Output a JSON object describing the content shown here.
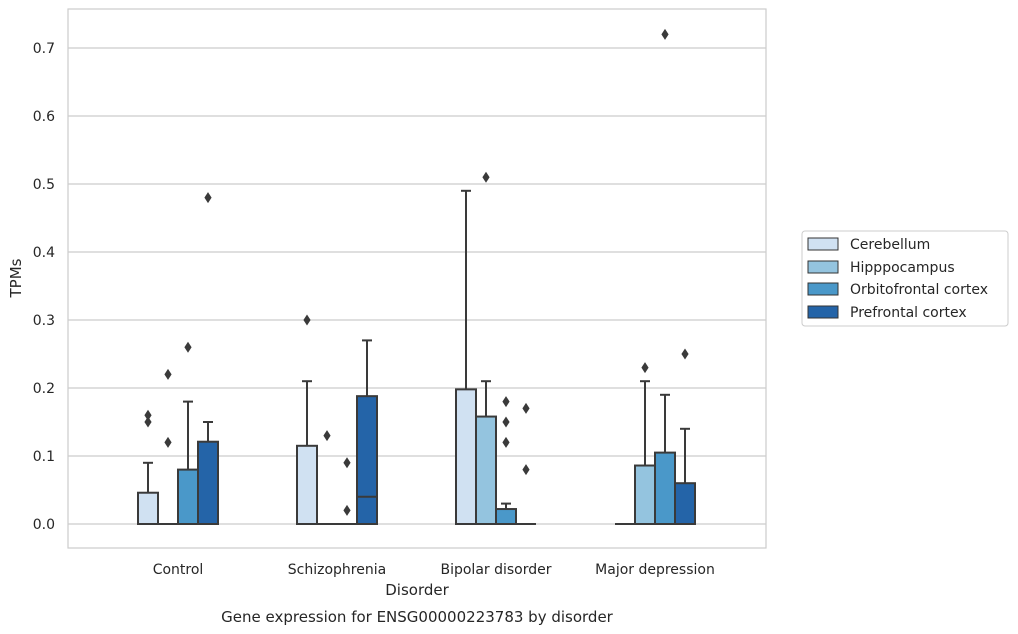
{
  "chart_data": {
    "type": "bar",
    "caption": "Gene expression for ENSG00000223783 by disorder",
    "xlabel": "Disorder",
    "ylabel": "TPMs",
    "ylim": [
      -0.035,
      0.757
    ],
    "yticks": [
      0.0,
      0.1,
      0.2,
      0.3,
      0.4,
      0.5,
      0.6,
      0.7
    ],
    "ytick_labels": [
      "0.0",
      "0.1",
      "0.2",
      "0.3",
      "0.4",
      "0.5",
      "0.6",
      "0.7"
    ],
    "grid": true,
    "legend_position": "right",
    "categories": [
      "Control",
      "Schizophrenia",
      "Bipolar disorder",
      "Major depression"
    ],
    "series": [
      {
        "name": "Cerebellum",
        "color": "#d0e1f2",
        "boxes": [
          {
            "q1": 0.0,
            "median": 0.0,
            "q3": 0.046,
            "whisker_low": 0.0,
            "whisker_high": 0.09,
            "outliers": [
              0.15,
              0.16
            ]
          },
          {
            "q1": 0.0,
            "median": 0.0,
            "q3": 0.115,
            "whisker_low": 0.0,
            "whisker_high": 0.21,
            "outliers": [
              0.3
            ]
          },
          {
            "q1": 0.0,
            "median": 0.0,
            "q3": 0.198,
            "whisker_low": 0.0,
            "whisker_high": 0.49,
            "outliers": []
          },
          {
            "q1": 0.0,
            "median": 0.0,
            "q3": 0.0,
            "whisker_low": 0.0,
            "whisker_high": 0.0,
            "outliers": []
          }
        ]
      },
      {
        "name": "Hipppocampus",
        "color": "#94c4df",
        "boxes": [
          {
            "q1": 0.0,
            "median": 0.0,
            "q3": 0.0,
            "whisker_low": 0.0,
            "whisker_high": 0.0,
            "outliers": [
              0.12,
              0.22
            ]
          },
          {
            "q1": 0.0,
            "median": 0.0,
            "q3": 0.0,
            "whisker_low": 0.0,
            "whisker_high": 0.0,
            "outliers": [
              0.13
            ]
          },
          {
            "q1": 0.0,
            "median": 0.0,
            "q3": 0.158,
            "whisker_low": 0.0,
            "whisker_high": 0.21,
            "outliers": [
              0.51
            ]
          },
          {
            "q1": 0.0,
            "median": 0.0,
            "q3": 0.086,
            "whisker_low": 0.0,
            "whisker_high": 0.21,
            "outliers": [
              0.23
            ]
          }
        ]
      },
      {
        "name": "Orbitofrontal cortex",
        "color": "#4a98c9",
        "boxes": [
          {
            "q1": 0.0,
            "median": 0.0,
            "q3": 0.08,
            "whisker_low": 0.0,
            "whisker_high": 0.18,
            "outliers": [
              0.26
            ]
          },
          {
            "q1": 0.0,
            "median": 0.0,
            "q3": 0.0,
            "whisker_low": 0.0,
            "whisker_high": 0.0,
            "outliers": [
              0.02,
              0.09
            ]
          },
          {
            "q1": 0.0,
            "median": 0.0,
            "q3": 0.022,
            "whisker_low": 0.0,
            "whisker_high": 0.03,
            "outliers": [
              0.12,
              0.15,
              0.18
            ]
          },
          {
            "q1": 0.0,
            "median": 0.0,
            "q3": 0.105,
            "whisker_low": 0.0,
            "whisker_high": 0.19,
            "outliers": [
              0.72
            ]
          }
        ]
      },
      {
        "name": "Prefrontal cortex",
        "color": "#2464a8",
        "boxes": [
          {
            "q1": 0.0,
            "median": 0.0,
            "q3": 0.121,
            "whisker_low": 0.0,
            "whisker_high": 0.15,
            "outliers": [
              0.48
            ]
          },
          {
            "q1": 0.0,
            "median": 0.04,
            "q3": 0.188,
            "whisker_low": 0.0,
            "whisker_high": 0.27,
            "outliers": []
          },
          {
            "q1": 0.0,
            "median": 0.0,
            "q3": 0.0,
            "whisker_low": 0.0,
            "whisker_high": 0.0,
            "outliers": [
              0.08,
              0.17
            ]
          },
          {
            "q1": 0.0,
            "median": 0.0,
            "q3": 0.06,
            "whisker_low": 0.0,
            "whisker_high": 0.14,
            "outliers": [
              0.25
            ]
          }
        ]
      }
    ]
  }
}
